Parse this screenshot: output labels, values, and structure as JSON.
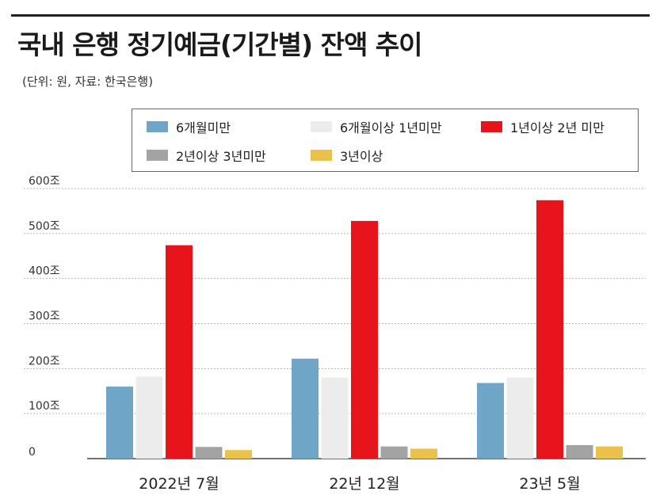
{
  "chart_data": {
    "type": "bar",
    "title": "국내 은행 정기예금(기간별) 잔액 추이",
    "subtitle": "(단위: 원, 자료: 한국은행)",
    "categories": [
      "2022년 7월",
      "22년 12월",
      "23년 5월"
    ],
    "series": [
      {
        "name": "6개월미만",
        "color": "#6fa6c8",
        "values": [
          160,
          222,
          168
        ]
      },
      {
        "name": "6개월이상 1년미만",
        "color": "#ececec",
        "values": [
          182,
          180,
          180
        ]
      },
      {
        "name": "1년이상 2년 미만",
        "color": "#e8141c",
        "values": [
          474,
          528,
          574
        ]
      },
      {
        "name": "2년이상 3년미만",
        "color": "#a3a3a3",
        "values": [
          26,
          27,
          30
        ]
      },
      {
        "name": "3년이상",
        "color": "#e9c14c",
        "values": [
          19,
          22,
          27
        ]
      }
    ],
    "yticks": [
      "0",
      "100조",
      "200조",
      "300조",
      "400조",
      "500조",
      "600조"
    ],
    "ylim": [
      0,
      600
    ],
    "grid": true,
    "legend_position": "top"
  }
}
